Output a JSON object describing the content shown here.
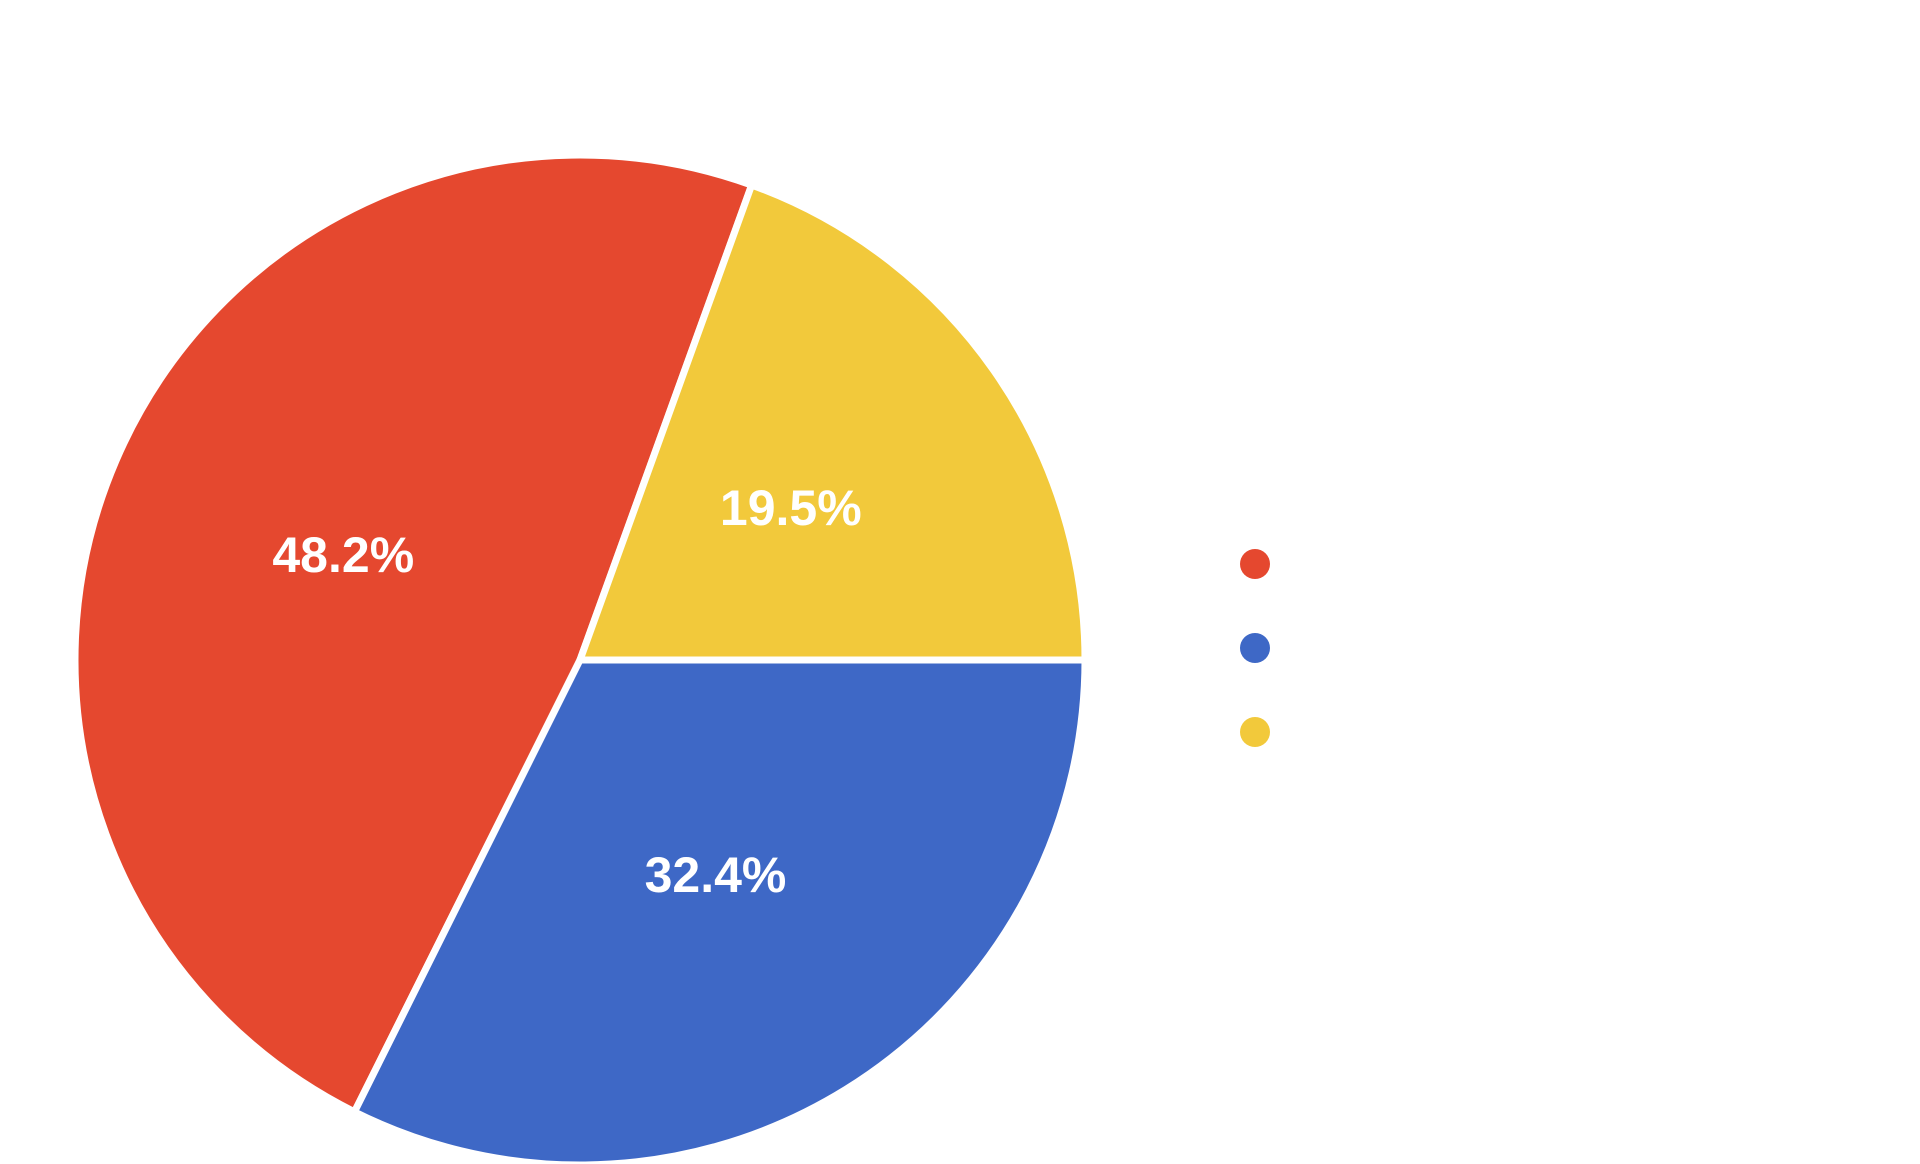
{
  "chart_data": {
    "type": "pie",
    "title": "",
    "slices": [
      {
        "name": "",
        "value": 48.2,
        "label": "48.2%",
        "color": "#E5482F"
      },
      {
        "name": "",
        "value": 32.4,
        "label": "32.4%",
        "color": "#3E68C6"
      },
      {
        "name": "",
        "value": 19.5,
        "label": "19.5%",
        "color": "#F2C93B"
      }
    ],
    "legend": {
      "placement": "right",
      "entries": [
        {
          "name": "",
          "color": "#E5482F"
        },
        {
          "name": "",
          "color": "#3E68C6"
        },
        {
          "name": "",
          "color": "#F2C93B"
        }
      ]
    }
  }
}
